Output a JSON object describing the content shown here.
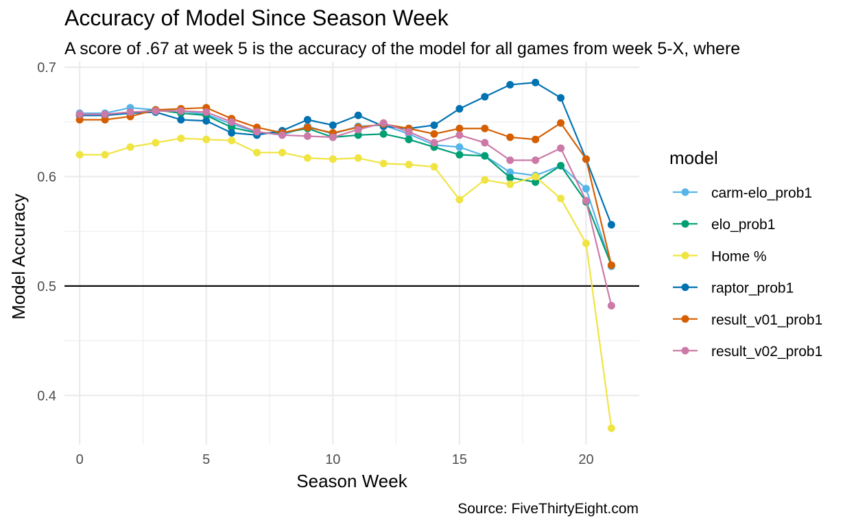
{
  "chart_data": {
    "type": "line",
    "title": "Accuracy of Model Since Season Week",
    "subtitle": "A score of .67 at week 5 is the accuracy of the model for all games from week 5-X, where",
    "caption": "Source: FiveThirtyEight.com",
    "xlabel": "Season Week",
    "ylabel": "Model Accuracy",
    "xlim": [
      -0.6,
      22.1
    ],
    "ylim": [
      0.355,
      0.705
    ],
    "x_ticks": [
      0,
      5,
      10,
      15,
      20
    ],
    "x_tick_labels": [
      "0",
      "5",
      "10",
      "15",
      "20"
    ],
    "y_ticks": [
      0.4,
      0.5,
      0.6,
      0.7
    ],
    "y_tick_labels": [
      "0.4",
      "0.5",
      "0.6",
      "0.7"
    ],
    "reference_line": {
      "y": 0.5,
      "color": "#000000"
    },
    "grid": true,
    "legend": {
      "title": "model",
      "position": "right"
    },
    "x": [
      0,
      1,
      2,
      3,
      4,
      5,
      6,
      7,
      8,
      9,
      10,
      11,
      12,
      13,
      14,
      15,
      16,
      17,
      18,
      19,
      20,
      21
    ],
    "series": [
      {
        "name": "carm-elo_prob1",
        "color": "#56B4E9",
        "values": [
          0.658,
          0.658,
          0.663,
          0.661,
          0.66,
          0.657,
          0.648,
          0.641,
          0.638,
          0.646,
          0.639,
          0.646,
          0.647,
          0.639,
          0.629,
          0.627,
          0.619,
          0.604,
          0.601,
          0.61,
          0.589,
          0.518
        ]
      },
      {
        "name": "elo_prob1",
        "color": "#009E73",
        "values": [
          0.656,
          0.656,
          0.658,
          0.661,
          0.658,
          0.656,
          0.645,
          0.64,
          0.64,
          0.644,
          0.636,
          0.638,
          0.639,
          0.634,
          0.627,
          0.62,
          0.619,
          0.599,
          0.595,
          0.61,
          0.577,
          0.519
        ]
      },
      {
        "name": "Home %",
        "color": "#F0E442",
        "values": [
          0.62,
          0.62,
          0.627,
          0.631,
          0.635,
          0.634,
          0.633,
          0.622,
          0.622,
          0.617,
          0.616,
          0.617,
          0.612,
          0.611,
          0.609,
          0.579,
          0.597,
          0.593,
          0.6,
          0.58,
          0.539,
          0.37
        ]
      },
      {
        "name": "raptor_prob1",
        "color": "#0072B2",
        "values": [
          0.656,
          0.656,
          0.658,
          0.659,
          0.652,
          0.651,
          0.64,
          0.638,
          0.642,
          0.652,
          0.647,
          0.656,
          0.646,
          0.644,
          0.647,
          0.662,
          0.673,
          0.684,
          0.686,
          0.672,
          0.616,
          0.556
        ]
      },
      {
        "name": "result_v01_prob1",
        "color": "#D55E00",
        "values": [
          0.652,
          0.652,
          0.655,
          0.661,
          0.662,
          0.663,
          0.653,
          0.645,
          0.64,
          0.645,
          0.64,
          0.645,
          0.648,
          0.644,
          0.639,
          0.644,
          0.644,
          0.636,
          0.634,
          0.649,
          0.616,
          0.519
        ]
      },
      {
        "name": "result_v02_prob1",
        "color": "#CC79A7",
        "values": [
          0.657,
          0.657,
          0.659,
          0.66,
          0.66,
          0.659,
          0.65,
          0.641,
          0.638,
          0.637,
          0.636,
          0.643,
          0.649,
          0.641,
          0.631,
          0.638,
          0.631,
          0.615,
          0.615,
          0.626,
          0.578,
          0.482
        ]
      }
    ]
  }
}
